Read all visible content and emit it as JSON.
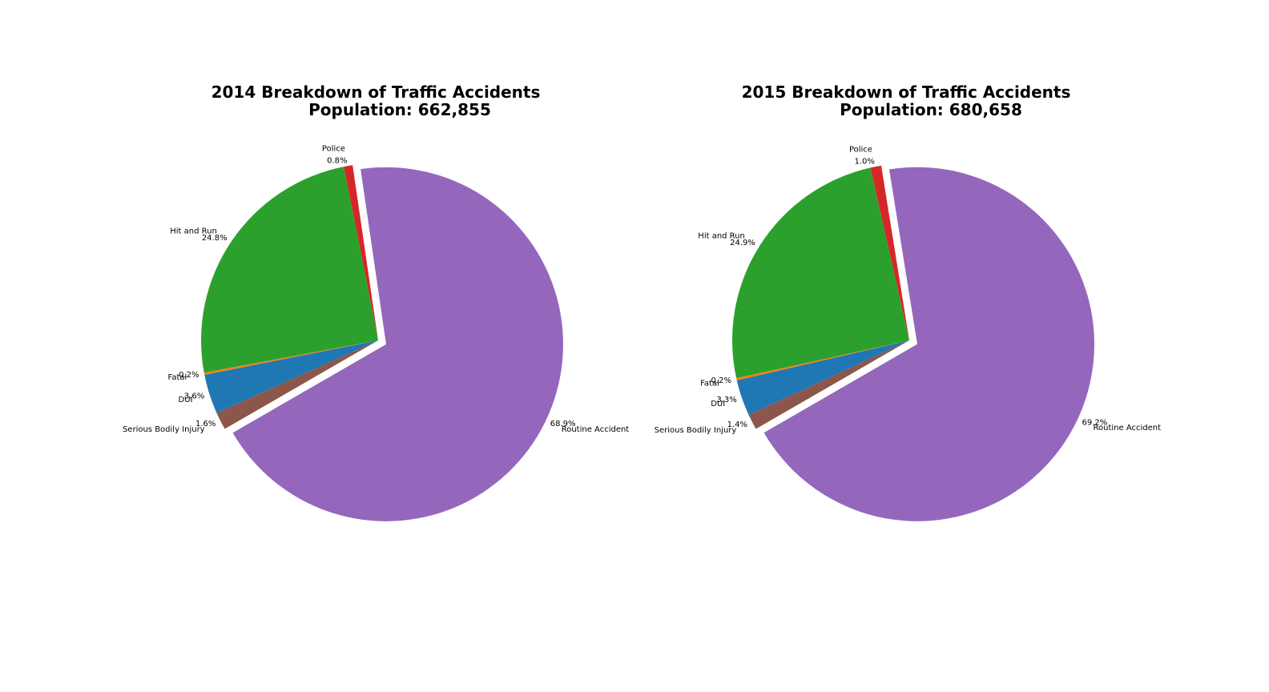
{
  "chart_data": [
    {
      "type": "pie",
      "title_line1": "2014 Breakdown of Traffic Accidents",
      "title_line2": "Population: 662,855",
      "slices": [
        {
          "label": "Routine Accident",
          "pct_label": "68.9%",
          "value": 68.9,
          "color": "#9467bd",
          "explode": true
        },
        {
          "label": "Police",
          "pct_label": "0.8%",
          "value": 0.8,
          "color": "#d62728",
          "explode": false
        },
        {
          "label": "Hit and Run",
          "pct_label": "24.8%",
          "value": 24.8,
          "color": "#2ca02c",
          "explode": false
        },
        {
          "label": "Fatal",
          "pct_label": "0.2%",
          "value": 0.2,
          "color": "#ff7f0e",
          "explode": false
        },
        {
          "label": "DUI",
          "pct_label": "3.6%",
          "value": 3.6,
          "color": "#1f77b4",
          "explode": false
        },
        {
          "label": "Serious Bodily Injury",
          "pct_label": "1.6%",
          "value": 1.6,
          "color": "#8c564b",
          "explode": false
        }
      ]
    },
    {
      "type": "pie",
      "title_line1": "2015 Breakdown of Traffic Accidents",
      "title_line2": "Population: 680,658",
      "slices": [
        {
          "label": "Routine Accident",
          "pct_label": "69.2%",
          "value": 69.2,
          "color": "#9467bd",
          "explode": true
        },
        {
          "label": "Police",
          "pct_label": "1.0%",
          "value": 1.0,
          "color": "#d62728",
          "explode": false
        },
        {
          "label": "Hit and Run",
          "pct_label": "24.9%",
          "value": 24.9,
          "color": "#2ca02c",
          "explode": false
        },
        {
          "label": "Fatal",
          "pct_label": "0.2%",
          "value": 0.2,
          "color": "#ff7f0e",
          "explode": false
        },
        {
          "label": "DUI",
          "pct_label": "3.3%",
          "value": 3.3,
          "color": "#1f77b4",
          "explode": false
        },
        {
          "label": "Serious Bodily Injury",
          "pct_label": "1.4%",
          "value": 1.4,
          "color": "#8c564b",
          "explode": false
        }
      ]
    }
  ]
}
